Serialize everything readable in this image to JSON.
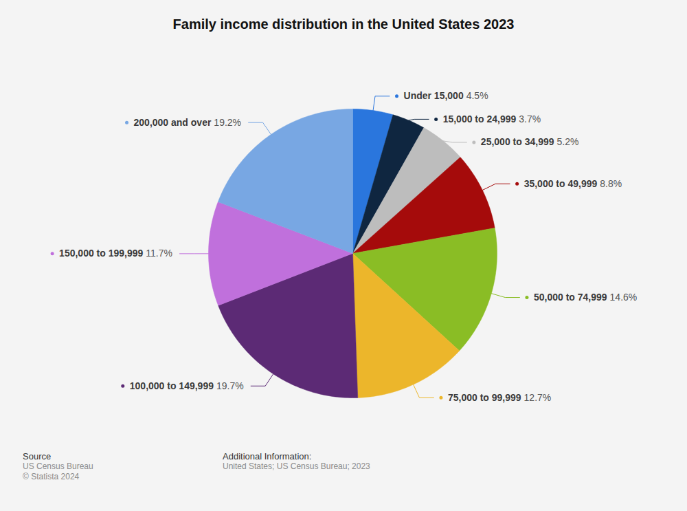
{
  "chart_data": {
    "type": "pie",
    "title": "Family income distribution in the United States 2023",
    "categories": [
      "Under 15,000",
      "15,000 to 24,999",
      "25,000 to 34,999",
      "35,000 to 49,999",
      "50,000 to 74,999",
      "75,000 to 99,999",
      "100,000 to 149,999",
      "150,000 to 199,999",
      "200,000 and over"
    ],
    "values": [
      4.5,
      3.7,
      5.2,
      8.8,
      14.6,
      12.7,
      19.7,
      11.7,
      19.2
    ],
    "value_labels": [
      "4.5%",
      "3.7%",
      "5.2%",
      "8.8%",
      "14.6%",
      "12.7%",
      "19.7%",
      "11.7%",
      "19.2%"
    ],
    "colors": [
      "#2a76dd",
      "#0f2640",
      "#bdbdbd",
      "#a50b0b",
      "#8abd25",
      "#ecb62b",
      "#5c2a75",
      "#c070dc",
      "#78a7e3"
    ],
    "data_labels": true,
    "source_label": "Source",
    "source": "US Census Bureau",
    "copyright": "© Statista 2024",
    "additional_info_label": "Additional Information:",
    "additional_info": "United States; US Census Bureau; 2023"
  }
}
